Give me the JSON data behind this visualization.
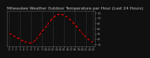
{
  "title": "Milwaukee Weather Outdoor Temperature per Hour (Last 24 Hours)",
  "hours": [
    0,
    1,
    2,
    3,
    4,
    5,
    6,
    7,
    8,
    9,
    10,
    11,
    12,
    13,
    14,
    15,
    16,
    17,
    18,
    19,
    20,
    21,
    22,
    23
  ],
  "temps": [
    36,
    34,
    32,
    30,
    28,
    27,
    26,
    28,
    32,
    37,
    41,
    46,
    50,
    53,
    54,
    53,
    51,
    48,
    44,
    40,
    36,
    32,
    29,
    27
  ],
  "line_color": "#ff0000",
  "marker_color": "#000000",
  "bg_color": "#101010",
  "plot_bg": "#101010",
  "title_color": "#cccccc",
  "grid_color": "#555555",
  "tick_color": "#999999",
  "spine_color": "#555555",
  "ylim": [
    23,
    57
  ],
  "yticks": [
    25,
    30,
    35,
    40,
    45,
    50,
    55
  ],
  "ytick_labels": [
    "25",
    "30",
    "35",
    "40",
    "45",
    "50",
    "55"
  ],
  "xtick_positions": [
    0,
    1,
    2,
    3,
    4,
    5,
    6,
    7,
    8,
    9,
    10,
    11,
    12,
    13,
    14,
    15,
    16,
    17,
    18,
    19,
    20,
    21,
    22,
    23
  ],
  "title_fontsize": 4.2,
  "tick_fontsize": 3.2,
  "line_width": 0.9,
  "marker_size": 2.0,
  "grid_positions": [
    0,
    3,
    6,
    9,
    12,
    15,
    18,
    21,
    23
  ]
}
